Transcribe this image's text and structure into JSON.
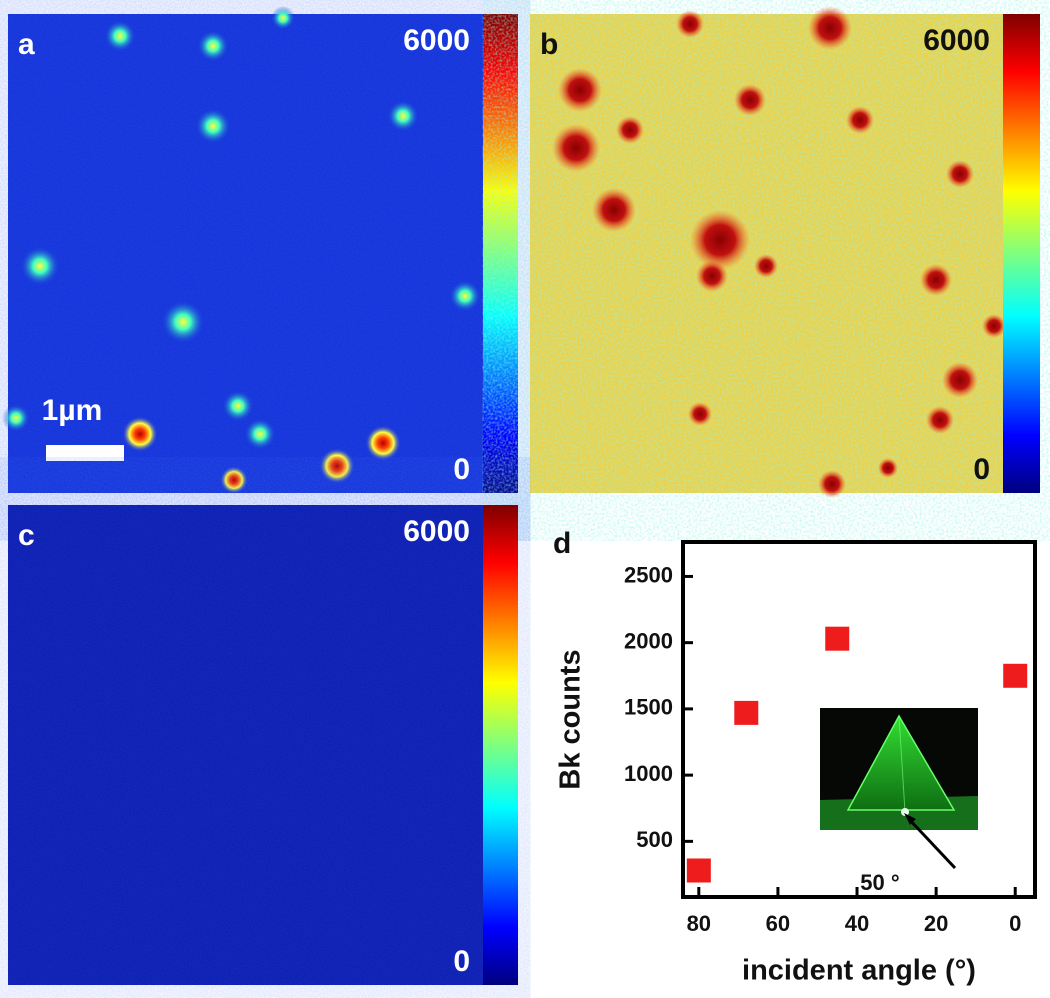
{
  "panels": [
    {
      "label": "a",
      "clim": [
        0,
        6000
      ],
      "cticks": [
        0,
        6000
      ],
      "scale_bar": "1µm"
    },
    {
      "label": "b",
      "clim": [
        0,
        6000
      ],
      "cticks": [
        0,
        6000
      ]
    },
    {
      "label": "c",
      "clim": [
        0,
        6000
      ],
      "cticks": [
        0,
        6000
      ]
    }
  ],
  "chart_data": {
    "type": "scatter",
    "label": "d",
    "x_label": "incident angle (°)",
    "y_label": "Bk counts",
    "x": [
      80,
      68,
      45,
      0
    ],
    "values": [
      280,
      1470,
      2030,
      1750
    ],
    "color": "#ee1c1c",
    "xlim": [
      84,
      -5
    ],
    "ylim": [
      80,
      2760
    ],
    "xticks": [
      80,
      60,
      40,
      20,
      0
    ],
    "yticks": [
      500,
      1000,
      1500,
      2000,
      2500
    ],
    "annotation": "50 °"
  }
}
